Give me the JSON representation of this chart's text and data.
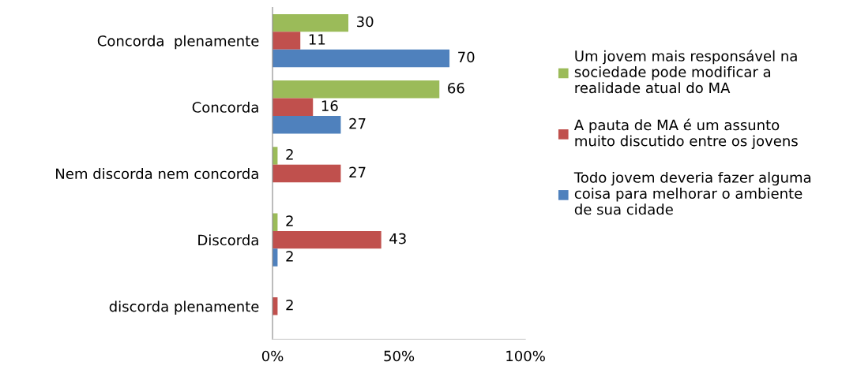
{
  "chart_data": {
    "type": "bar",
    "orientation": "horizontal",
    "categories": [
      "Concorda  plenamente",
      "Concorda",
      "Nem discorda nem concorda",
      "Discorda",
      "discorda plenamente"
    ],
    "series": [
      {
        "name": "Um jovem mais responsável na sociedade pode modificar a realidade atual do MA",
        "color": "#9bbb59",
        "values": [
          30,
          66,
          2,
          2,
          null
        ]
      },
      {
        "name": "A pauta de MA é um assunto muito discutido entre os jovens",
        "color": "#c0504d",
        "values": [
          11,
          16,
          27,
          43,
          2
        ]
      },
      {
        "name": "Todo jovem deveria fazer alguma coisa para melhorar o ambiente de sua cidade",
        "color": "#4f81bd",
        "values": [
          70,
          27,
          null,
          2,
          null
        ]
      }
    ],
    "xlim": [
      0,
      100
    ],
    "xticks": [
      {
        "value": 0,
        "label": "0%"
      },
      {
        "value": 50,
        "label": "50%"
      },
      {
        "value": 100,
        "label": "100%"
      }
    ],
    "data_labels": true,
    "grid": false,
    "legend": "right"
  }
}
